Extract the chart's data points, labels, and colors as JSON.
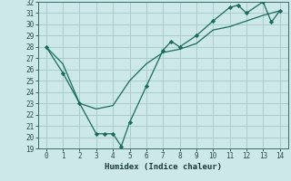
{
  "xlabel": "Humidex (Indice chaleur)",
  "bg_color": "#cce8e8",
  "line_color": "#1a6b5a",
  "grid_color": "#aacccc",
  "ylim": [
    19,
    32
  ],
  "xlim": [
    -0.5,
    14.5
  ],
  "yticks": [
    19,
    20,
    21,
    22,
    23,
    24,
    25,
    26,
    27,
    28,
    29,
    30,
    31,
    32
  ],
  "xticks": [
    0,
    1,
    2,
    3,
    4,
    5,
    6,
    7,
    8,
    9,
    10,
    11,
    12,
    13,
    14
  ],
  "line1_x": [
    0,
    1,
    2,
    3,
    3.5,
    4,
    4.5,
    5,
    6,
    7,
    7.5,
    8,
    9,
    10,
    11,
    11.5,
    12,
    13,
    13.5,
    14
  ],
  "line1_y": [
    28.0,
    25.7,
    23.0,
    20.3,
    20.3,
    20.3,
    19.2,
    21.3,
    24.5,
    27.7,
    28.5,
    28.0,
    29.0,
    30.3,
    31.5,
    31.7,
    31.0,
    32.0,
    30.2,
    31.2
  ],
  "line2_x": [
    0,
    1,
    2,
    3,
    4,
    5,
    6,
    7,
    8,
    9,
    10,
    11,
    12,
    13,
    14
  ],
  "line2_y": [
    28.0,
    26.5,
    23.0,
    22.5,
    22.8,
    25.0,
    26.5,
    27.5,
    27.8,
    28.3,
    29.5,
    29.8,
    30.3,
    30.8,
    31.2
  ],
  "tick_fontsize": 5.5,
  "xlabel_fontsize": 6.5
}
